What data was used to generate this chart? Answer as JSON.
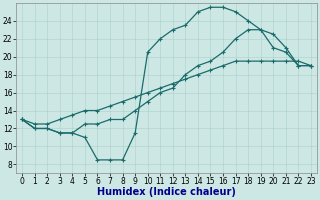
{
  "title": "",
  "xlabel": "Humidex (Indice chaleur)",
  "background_color": "#cde8e4",
  "grid_color": "#aacfca",
  "line_color": "#1a6b6b",
  "xlim": [
    -0.5,
    23.5
  ],
  "ylim": [
    7,
    26
  ],
  "xticks": [
    0,
    1,
    2,
    3,
    4,
    5,
    6,
    7,
    8,
    9,
    10,
    11,
    12,
    13,
    14,
    15,
    16,
    17,
    18,
    19,
    20,
    21,
    22,
    23
  ],
  "yticks": [
    8,
    10,
    12,
    14,
    16,
    18,
    20,
    22,
    24
  ],
  "line1_x": [
    0,
    1,
    2,
    3,
    4,
    5,
    6,
    7,
    8,
    9,
    10,
    11,
    12,
    13,
    14,
    15,
    16,
    17,
    18,
    19,
    20,
    21,
    22,
    23
  ],
  "line1_y": [
    13,
    12,
    12,
    11.5,
    11.5,
    11,
    8.5,
    8.5,
    8.5,
    11.5,
    20.5,
    22,
    23,
    23.5,
    25,
    25.5,
    25.5,
    25,
    24,
    23,
    21,
    20.5,
    19,
    19
  ],
  "line2_x": [
    0,
    1,
    2,
    3,
    4,
    5,
    6,
    7,
    8,
    9,
    10,
    11,
    12,
    13,
    14,
    15,
    16,
    17,
    18,
    19,
    20,
    21,
    22,
    23
  ],
  "line2_y": [
    13,
    12,
    12,
    11.5,
    11.5,
    12.5,
    12.5,
    13,
    13,
    14,
    15,
    16,
    16.5,
    18,
    19,
    19.5,
    20.5,
    22,
    23,
    23,
    22.5,
    21,
    19,
    19
  ],
  "line3_x": [
    0,
    1,
    2,
    3,
    4,
    5,
    6,
    7,
    8,
    9,
    10,
    11,
    12,
    13,
    14,
    15,
    16,
    17,
    18,
    19,
    20,
    21,
    22,
    23
  ],
  "line3_y": [
    13,
    12.5,
    12.5,
    13,
    13.5,
    14,
    14,
    14.5,
    15,
    15.5,
    16,
    16.5,
    17,
    17.5,
    18,
    18.5,
    19,
    19.5,
    19.5,
    19.5,
    19.5,
    19.5,
    19.5,
    19
  ],
  "xlabel_color": "#00008b",
  "xlabel_fontsize": 7,
  "tick_fontsize": 5.5,
  "marker_size": 3,
  "linewidth": 0.9
}
